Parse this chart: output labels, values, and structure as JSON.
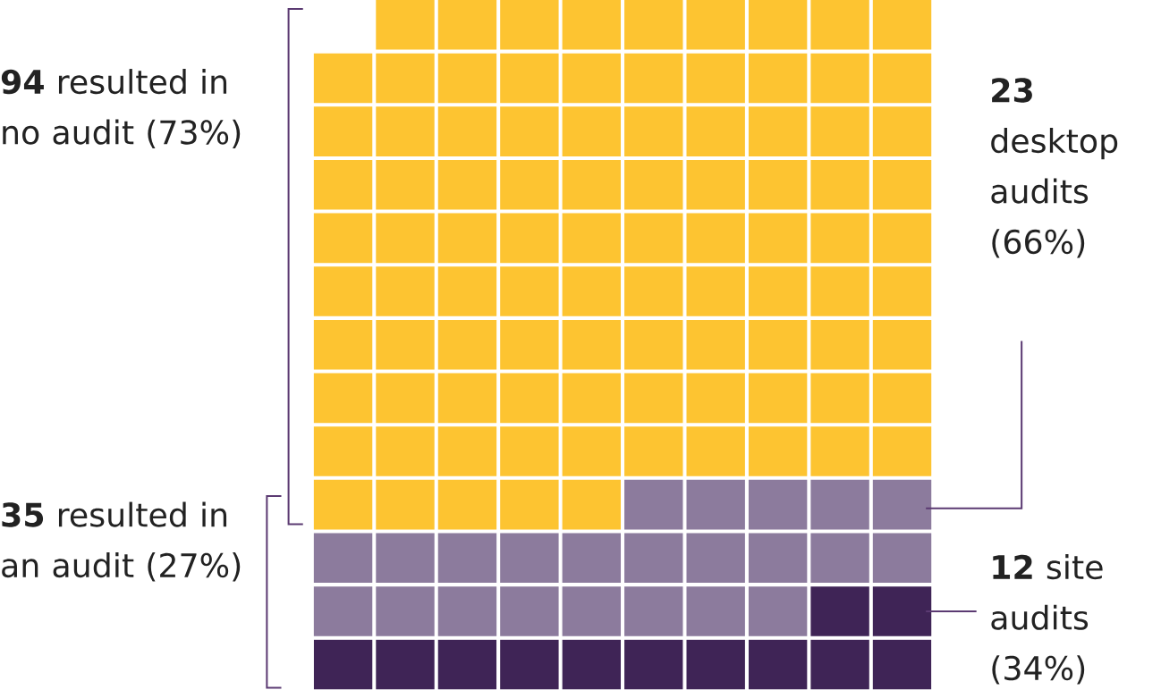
{
  "chart_data": {
    "type": "other",
    "categories": [
      "site audits (34%)",
      "desktop audits (66%)",
      "resulted in no audit (73%)"
    ],
    "values": [
      12,
      23,
      94
    ],
    "value_labels": [
      "12",
      "23",
      "94"
    ],
    "colors": [
      "#3f2456",
      "#8c7b9d",
      "#fdc431"
    ],
    "annotations": [
      "**35** resulted in an audit (27%)"
    ]
  }
}
